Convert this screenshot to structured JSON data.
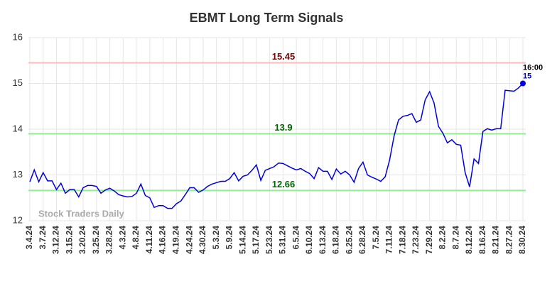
{
  "chart_data": {
    "type": "line",
    "title": "EBMT Long Term Signals",
    "categories": [
      "3.4.24",
      null,
      null,
      "3.7.24",
      null,
      null,
      "3.12.24",
      null,
      null,
      "3.15.24",
      null,
      null,
      "3.20.24",
      null,
      null,
      "3.25.24",
      null,
      null,
      "3.28.24",
      null,
      null,
      "4.3.24",
      null,
      null,
      "4.8.24",
      null,
      null,
      "4.11.24",
      null,
      null,
      "4.16.24",
      null,
      null,
      "4.19.24",
      null,
      null,
      "4.24.24",
      null,
      null,
      "4.30.24",
      null,
      null,
      "5.3.24",
      null,
      null,
      "5.9.24",
      null,
      null,
      "5.14.24",
      null,
      null,
      "5.17.24",
      null,
      null,
      "5.23.24",
      null,
      null,
      "5.31.24",
      null,
      null,
      "6.5.24",
      null,
      null,
      "6.10.24",
      null,
      null,
      "6.13.24",
      null,
      null,
      "6.18.24",
      null,
      null,
      "6.25.24",
      null,
      null,
      "6.28.24",
      null,
      null,
      "7.5.24",
      null,
      null,
      "7.11.24",
      null,
      null,
      "7.18.24",
      null,
      null,
      "7.23.24",
      null,
      null,
      "7.29.24",
      null,
      null,
      "8.2.24",
      null,
      null,
      "8.7.24",
      null,
      null,
      "8.12.24",
      null,
      null,
      "8.16.24",
      null,
      null,
      "8.21.24",
      null,
      null,
      "8.27.24",
      null,
      null,
      "8.30.24"
    ],
    "series": [
      {
        "color": "#0000dd",
        "values": [
          12.85,
          13.11,
          12.85,
          13.05,
          12.87,
          12.87,
          12.68,
          12.82,
          12.6,
          12.68,
          12.68,
          12.52,
          12.72,
          12.77,
          12.77,
          12.75,
          12.6,
          12.67,
          12.71,
          12.65,
          12.57,
          12.54,
          12.52,
          12.53,
          12.6,
          12.8,
          12.55,
          12.5,
          12.29,
          12.33,
          12.33,
          12.27,
          12.27,
          12.37,
          12.43,
          12.57,
          12.72,
          12.72,
          12.62,
          12.67,
          12.75,
          12.8,
          12.83,
          12.86,
          12.86,
          12.92,
          13.05,
          12.87,
          12.97,
          13.0,
          13.1,
          13.22,
          12.88,
          13.1,
          13.14,
          13.18,
          13.26,
          13.25,
          13.2,
          13.15,
          13.11,
          13.14,
          13.08,
          13.03,
          12.92,
          13.16,
          13.08,
          13.08,
          12.9,
          13.13,
          13.02,
          13.08,
          13.0,
          12.84,
          13.14,
          13.28,
          13.0,
          12.95,
          12.91,
          12.86,
          12.96,
          13.33,
          13.85,
          14.2,
          14.28,
          14.3,
          14.34,
          14.15,
          14.2,
          14.64,
          14.82,
          14.57,
          14.06,
          13.91,
          13.7,
          13.77,
          13.67,
          13.65,
          13.05,
          12.74,
          13.35,
          13.25,
          13.95,
          14.01,
          13.98,
          14.01,
          14.01,
          14.85,
          14.84,
          14.83,
          14.9,
          15
        ]
      }
    ],
    "ylim": [
      12,
      16
    ],
    "yticks": [
      12,
      13,
      14,
      15,
      16
    ],
    "grid": true,
    "hlines": [
      {
        "value": 15.45,
        "color": "#ffbbbb",
        "text_color": "#880000"
      },
      {
        "value": 13.9,
        "color": "#90ee90",
        "text_color": "#006600"
      },
      {
        "value": 12.66,
        "color": "#90ee90",
        "text_color": "#006600"
      }
    ],
    "last_label": "16:00",
    "watermark": "Stock Traders Daily"
  }
}
